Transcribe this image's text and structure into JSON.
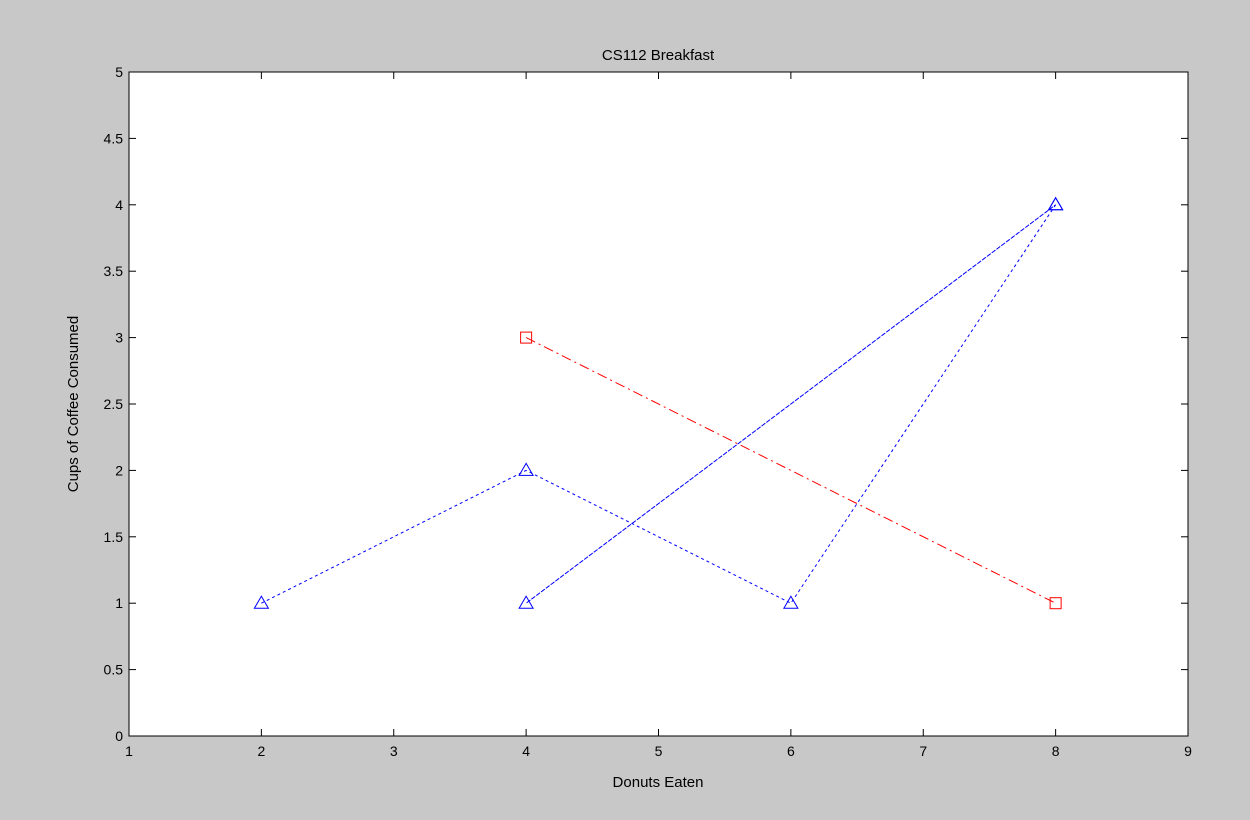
{
  "chart_data": {
    "type": "line",
    "title": "CS112 Breakfast",
    "xlabel": "Donuts Eaten",
    "ylabel": "Cups of Coffee Consumed",
    "xlim": [
      1,
      9
    ],
    "ylim": [
      0,
      5
    ],
    "xticks": [
      1,
      2,
      3,
      4,
      5,
      6,
      7,
      8,
      9
    ],
    "yticks": [
      0,
      0.5,
      1,
      1.5,
      2,
      2.5,
      3,
      3.5,
      4,
      4.5,
      5
    ],
    "grid": false,
    "series": [
      {
        "marker": "triangle",
        "line_style": "dotted",
        "color": "#0000ff",
        "x": [
          2,
          4,
          6,
          8,
          4,
          8
        ],
        "y": [
          1,
          2,
          1,
          4,
          1,
          4
        ]
      },
      {
        "marker": "square",
        "line_style": "dash-dot",
        "color": "#ff0000",
        "x": [
          4,
          8
        ],
        "y": [
          3,
          1
        ]
      }
    ]
  }
}
